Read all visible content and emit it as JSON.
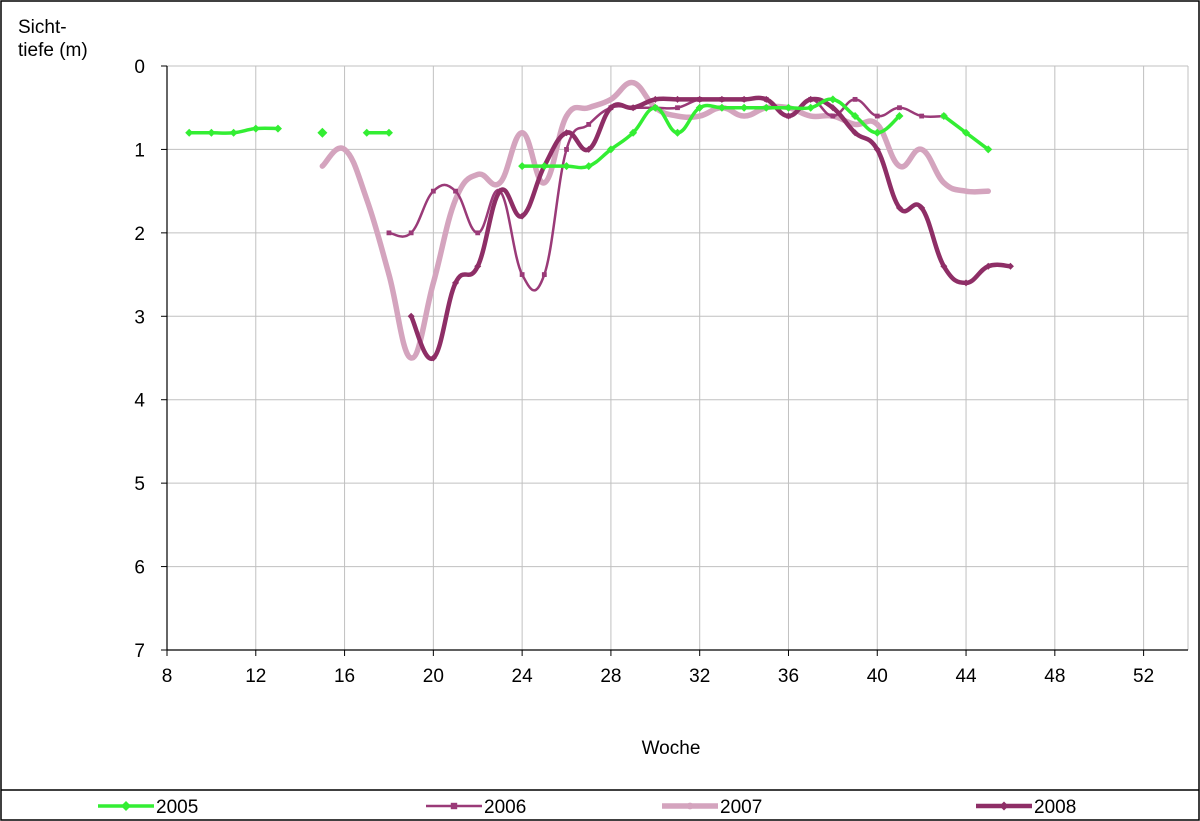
{
  "chart_data": {
    "type": "line",
    "ylabel_line1": "Sicht-",
    "ylabel_line2": "tiefe (m)",
    "xlabel": "Woche",
    "xlim": [
      8,
      54
    ],
    "ylim": [
      0,
      7
    ],
    "y_inverted": true,
    "xticks": [
      8,
      12,
      16,
      20,
      24,
      28,
      32,
      36,
      40,
      44,
      48,
      52
    ],
    "yticks": [
      0,
      1,
      2,
      3,
      4,
      5,
      6,
      7
    ],
    "grid": true,
    "legend_position": "bottom",
    "series": [
      {
        "name": "2005",
        "color": "#33ee33",
        "marker": "diamond",
        "segments": [
          [
            [
              9,
              0.8
            ],
            [
              10,
              0.8
            ],
            [
              11,
              0.8
            ],
            [
              12,
              0.75
            ],
            [
              13,
              0.75
            ]
          ],
          [
            [
              15,
              0.8
            ]
          ],
          [
            [
              17,
              0.8
            ],
            [
              18,
              0.8
            ]
          ],
          [
            [
              24,
              1.2
            ],
            [
              25,
              1.2
            ],
            [
              26,
              1.2
            ],
            [
              27,
              1.2
            ],
            [
              28,
              1.0
            ],
            [
              29,
              0.8
            ],
            [
              30,
              0.5
            ],
            [
              31,
              0.8
            ],
            [
              32,
              0.5
            ],
            [
              33,
              0.5
            ],
            [
              34,
              0.5
            ],
            [
              35,
              0.5
            ],
            [
              36,
              0.5
            ],
            [
              37,
              0.5
            ],
            [
              38,
              0.4
            ],
            [
              39,
              0.6
            ],
            [
              40,
              0.8
            ],
            [
              41,
              0.6
            ]
          ],
          [
            [
              43,
              0.6
            ],
            [
              44,
              0.8
            ],
            [
              45,
              1.0
            ]
          ]
        ]
      },
      {
        "name": "2006",
        "color": "#9a3a78",
        "marker": "square",
        "segments": [
          [
            [
              18,
              2.0
            ],
            [
              19,
              2.0
            ],
            [
              20,
              1.5
            ],
            [
              21,
              1.5
            ],
            [
              22,
              2.0
            ],
            [
              23,
              1.5
            ],
            [
              24,
              2.5
            ],
            [
              25,
              2.5
            ],
            [
              26,
              1.0
            ],
            [
              27,
              0.7
            ],
            [
              28,
              0.5
            ],
            [
              29,
              0.5
            ],
            [
              30,
              0.5
            ],
            [
              31,
              0.5
            ],
            [
              32,
              0.4
            ],
            [
              33,
              0.4
            ],
            [
              34,
              0.4
            ],
            [
              35,
              0.4
            ],
            [
              36,
              0.6
            ],
            [
              37,
              0.4
            ],
            [
              38,
              0.6
            ],
            [
              39,
              0.4
            ],
            [
              40,
              0.6
            ],
            [
              41,
              0.5
            ],
            [
              42,
              0.6
            ],
            [
              43,
              0.6
            ]
          ]
        ]
      },
      {
        "name": "2007",
        "color": "#d4a4be",
        "marker": "circle",
        "segments": [
          [
            [
              15,
              1.2
            ],
            [
              16,
              1.0
            ],
            [
              17,
              1.6
            ],
            [
              18,
              2.5
            ],
            [
              19,
              3.5
            ],
            [
              20,
              2.6
            ],
            [
              21,
              1.6
            ],
            [
              22,
              1.3
            ],
            [
              23,
              1.4
            ],
            [
              24,
              0.8
            ],
            [
              25,
              1.4
            ],
            [
              26,
              0.6
            ],
            [
              27,
              0.5
            ],
            [
              28,
              0.4
            ],
            [
              29,
              0.2
            ],
            [
              30,
              0.5
            ],
            [
              31,
              0.6
            ],
            [
              32,
              0.6
            ],
            [
              33,
              0.5
            ],
            [
              34,
              0.6
            ],
            [
              35,
              0.5
            ],
            [
              36,
              0.5
            ],
            [
              37,
              0.6
            ],
            [
              38,
              0.6
            ],
            [
              39,
              0.7
            ],
            [
              40,
              0.7
            ],
            [
              41,
              1.2
            ],
            [
              42,
              1.0
            ],
            [
              43,
              1.4
            ],
            [
              44,
              1.5
            ],
            [
              45,
              1.5
            ]
          ]
        ]
      },
      {
        "name": "2008",
        "color": "#8e2e66",
        "marker": "diamond",
        "segments": [
          [
            [
              19,
              3.0
            ],
            [
              20,
              3.5
            ],
            [
              21,
              2.6
            ],
            [
              22,
              2.4
            ],
            [
              23,
              1.5
            ],
            [
              24,
              1.8
            ],
            [
              25,
              1.2
            ],
            [
              26,
              0.8
            ],
            [
              27,
              1.0
            ],
            [
              28,
              0.5
            ],
            [
              29,
              0.5
            ],
            [
              30,
              0.4
            ],
            [
              31,
              0.4
            ],
            [
              32,
              0.4
            ],
            [
              33,
              0.4
            ],
            [
              34,
              0.4
            ],
            [
              35,
              0.4
            ],
            [
              36,
              0.6
            ],
            [
              37,
              0.4
            ],
            [
              38,
              0.5
            ],
            [
              39,
              0.8
            ],
            [
              40,
              1.0
            ],
            [
              41,
              1.7
            ],
            [
              42,
              1.7
            ],
            [
              43,
              2.4
            ],
            [
              44,
              2.6
            ],
            [
              45,
              2.4
            ],
            [
              46,
              2.4
            ]
          ]
        ]
      }
    ]
  }
}
